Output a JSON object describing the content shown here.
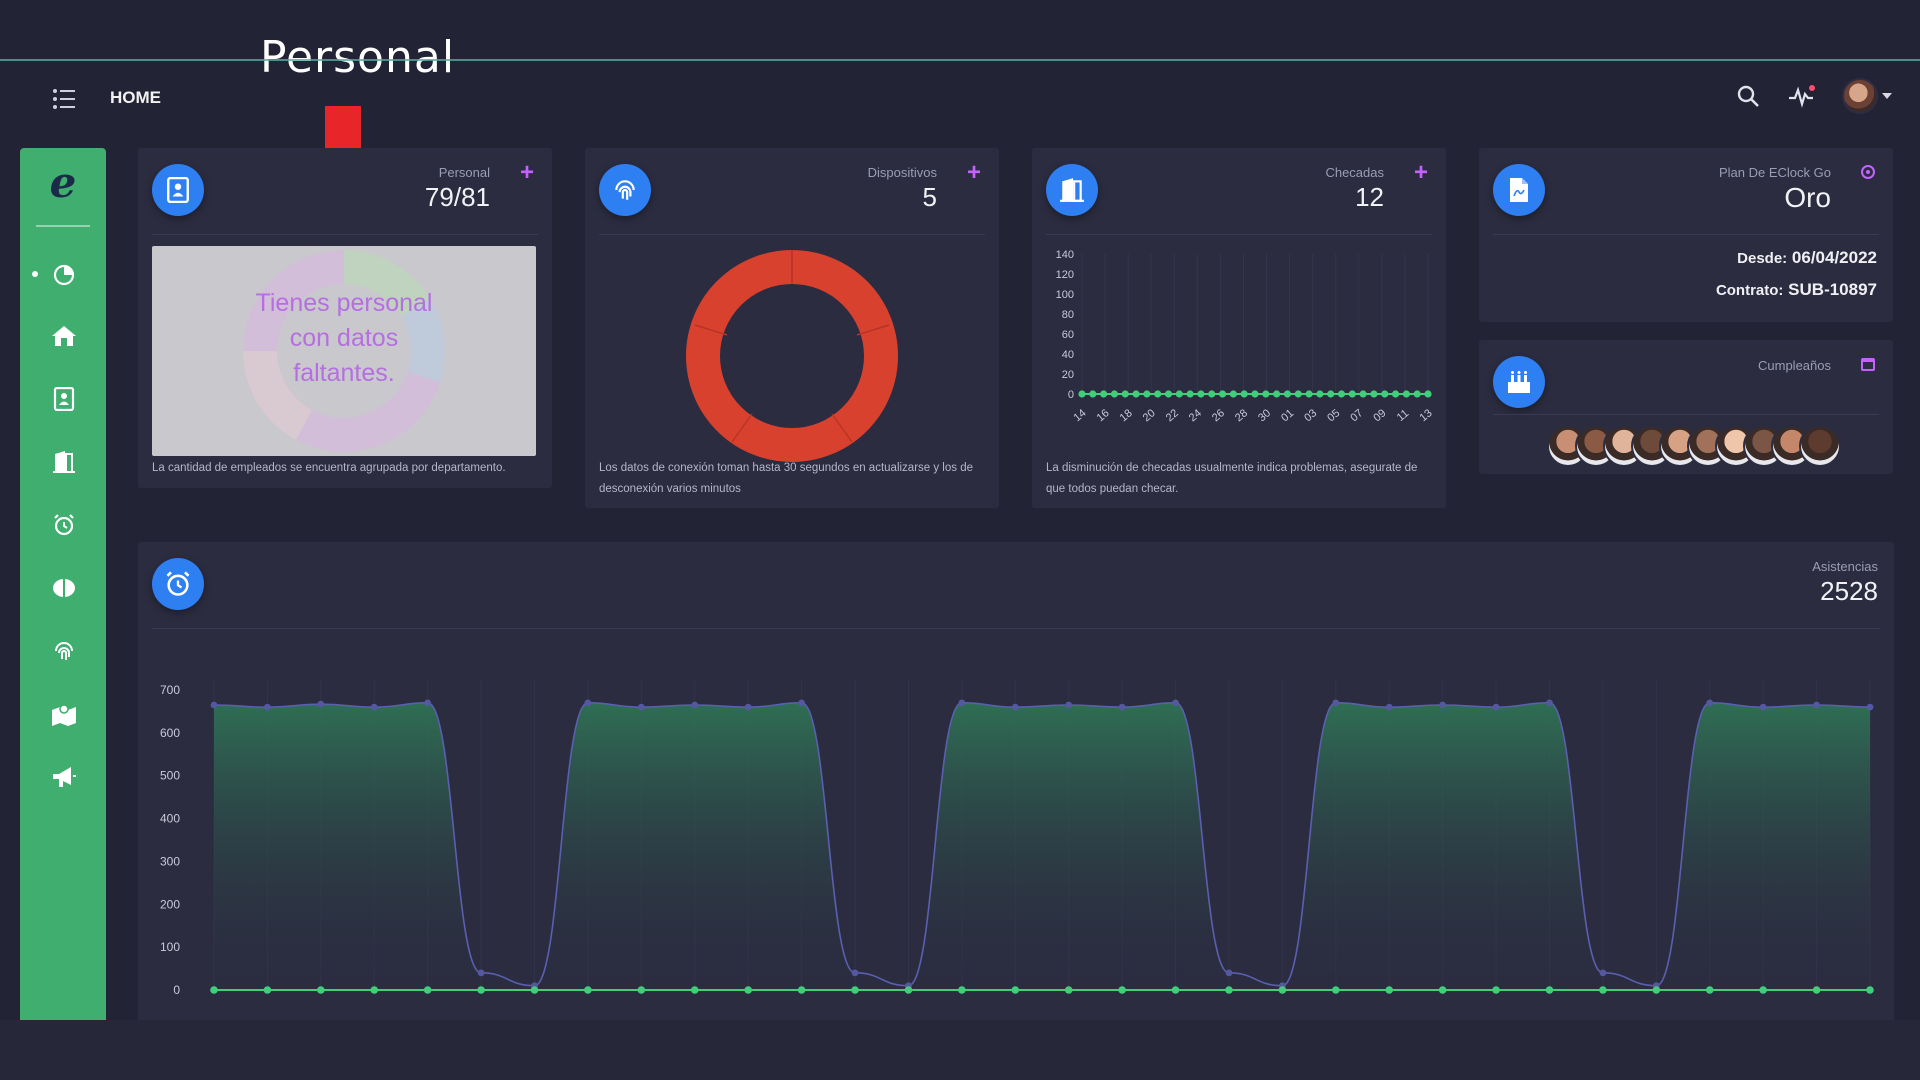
{
  "annotation": {
    "title": "Personal",
    "color": "#e8262a"
  },
  "topbar": {
    "home_label": "HOME",
    "icons": [
      "menu-list-icon",
      "search-icon",
      "activity-icon",
      "avatar"
    ]
  },
  "sidebar": {
    "accent": "#3fae6e",
    "logo_letter": "e",
    "items": [
      "dashboard-chart-icon",
      "home-icon",
      "contacts-icon",
      "door-icon",
      "alarm-clock-icon",
      "brain-icon",
      "fingerprint-icon",
      "map-icon",
      "megaphone-icon"
    ],
    "active_index": 0
  },
  "cards": {
    "personal": {
      "label": "Personal",
      "value": "79/81",
      "plus": "+",
      "missing_text": "Tienes personal\ncon datos\nfaltantes.",
      "footer": "La cantidad de empleados se encuentra agrupada por departamento."
    },
    "dispositivos": {
      "label": "Dispositivos",
      "value": "5",
      "plus": "+",
      "footer": "Los datos de conexión toman hasta 30 segundos en actualizarse y los de desconexión varios minutos",
      "donut_color": "#d9412f"
    },
    "checadas": {
      "label": "Checadas",
      "value": "12",
      "plus": "+",
      "footer": "La disminución de checadas usualmente indica problemas, asegurate de que todos puedan checar."
    },
    "plan": {
      "label": "Plan De EClock Go",
      "value": "Oro",
      "desde_label": "Desde:",
      "desde_value": "06/04/2022",
      "contrato_label": "Contrato:",
      "contrato_value": "SUB-10897"
    },
    "cumpleanos": {
      "label": "Cumpleaños",
      "faces": 10
    },
    "asistencias": {
      "label": "Asistencias",
      "value": "2528"
    }
  },
  "chart_data": [
    {
      "type": "line",
      "x": [
        "14",
        "16",
        "18",
        "20",
        "22",
        "24",
        "26",
        "28",
        "30",
        "01",
        "03",
        "05",
        "07",
        "09",
        "11",
        "13"
      ],
      "values": [
        0,
        0,
        0,
        0,
        0,
        0,
        0,
        0,
        0,
        0,
        0,
        0,
        0,
        0,
        0,
        0
      ],
      "ylim": [
        0,
        140
      ],
      "yticks": [
        0,
        20,
        40,
        60,
        80,
        100,
        120,
        140
      ]
    },
    {
      "type": "area",
      "ylim": [
        0,
        700
      ],
      "yticks": [
        0,
        100,
        200,
        300,
        400,
        500,
        600,
        700
      ],
      "series": [
        {
          "values": [
            665,
            660,
            667,
            660,
            670,
            40,
            10,
            670,
            660,
            665,
            660,
            670,
            40,
            10,
            670,
            660,
            665,
            660,
            670,
            40,
            10,
            670,
            660,
            665,
            660,
            670,
            40,
            10,
            670,
            660,
            665,
            660
          ]
        },
        {
          "values": [
            0,
            0,
            0,
            0,
            0,
            0,
            0,
            0,
            0,
            0,
            0,
            0,
            0,
            0,
            0,
            0,
            0,
            0,
            0,
            0,
            0,
            0,
            0,
            0,
            0,
            0,
            0,
            0,
            0,
            0,
            0,
            0
          ]
        }
      ]
    }
  ]
}
